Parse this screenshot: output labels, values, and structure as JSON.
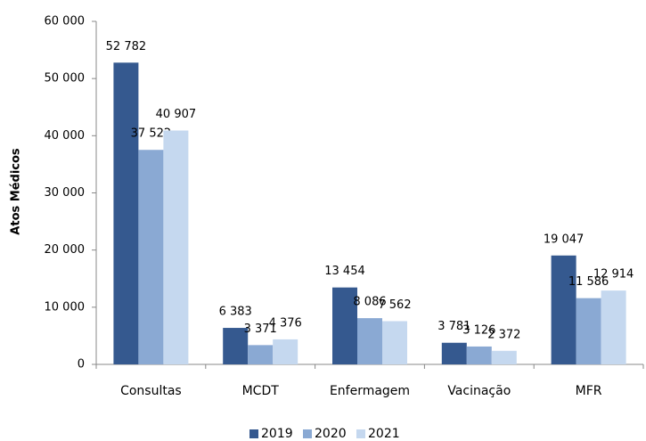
{
  "chart_data": {
    "type": "bar",
    "ylabel": "Atos Médicos",
    "categories": [
      "Consultas",
      "MCDT",
      "Enfermagem",
      "Vacinação",
      "MFR"
    ],
    "series": [
      {
        "name": "2019",
        "color": "#35598f",
        "values": [
          52782,
          6383,
          13454,
          3781,
          19047
        ],
        "value_labels": [
          "52 782",
          "6 383",
          "13 454",
          "3 781",
          "19 047"
        ]
      },
      {
        "name": "2020",
        "color": "#8aa9d3",
        "values": [
          37522,
          3371,
          8086,
          3126,
          11586
        ],
        "value_labels": [
          "37 522",
          "3 371",
          "8 086",
          "3 126",
          "11 586"
        ]
      },
      {
        "name": "2021",
        "color": "#c5d8ef",
        "values": [
          40907,
          4376,
          7562,
          2372,
          12914
        ],
        "value_labels": [
          "40 907",
          "4 376",
          "7 562",
          "2 372",
          "12 914"
        ]
      }
    ],
    "ylim": [
      0,
      60000
    ],
    "yticks": [
      0,
      {
        "value": 10000,
        "label": "10 000"
      },
      {
        "value": 20000,
        "label": "20 000"
      },
      {
        "value": 30000,
        "label": "30 000"
      },
      {
        "value": 40000,
        "label": "40 000"
      },
      {
        "value": 50000,
        "label": "50 000"
      },
      {
        "value": 60000,
        "label": "60 000"
      }
    ],
    "legend": "bottom",
    "grid": false
  }
}
